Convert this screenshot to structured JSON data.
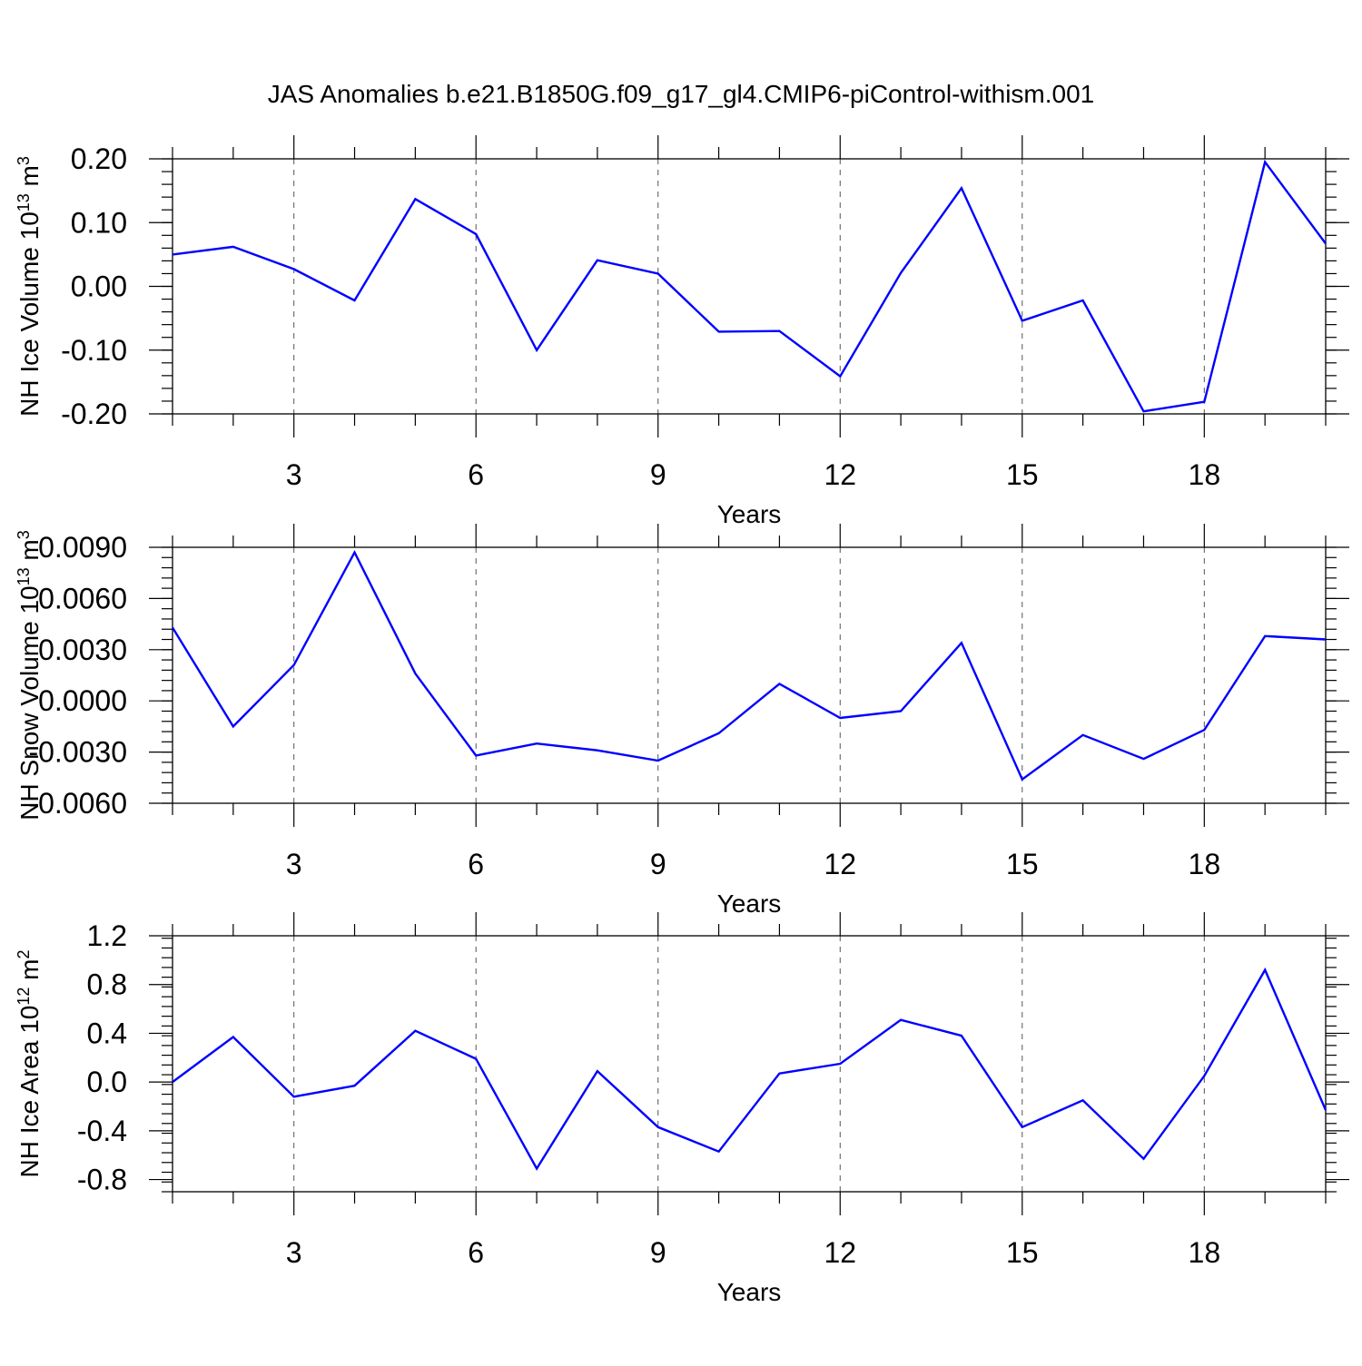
{
  "figure_title": "JAS Anomalies b.e21.B1850G.f09_g17_gl4.CMIP6-piControl-withism.001",
  "chart_data": [
    {
      "type": "line",
      "title": "JAS Anomalies b.e21.B1850G.f09_g17_gl4.CMIP6-piControl-withism.001",
      "ylabel": "NH Ice Volume 10",
      "ylabel_sup": "13",
      "ylabel_unit": "m",
      "ylabel_unit_sup": "3",
      "xlabel": "Years",
      "xlim": [
        1,
        20
      ],
      "ylim": [
        -0.2,
        0.2
      ],
      "x_ticks": [
        3,
        6,
        9,
        12,
        15,
        18
      ],
      "y_ticks": [
        "0.20",
        "0.10",
        "0.00",
        "-0.10",
        "-0.20"
      ],
      "y_tick_values": [
        0.2,
        0.1,
        0.0,
        -0.1,
        -0.2
      ],
      "series": [
        {
          "name": "NH Ice Volume",
          "color": "#0000ff",
          "x": [
            1,
            2,
            3,
            4,
            5,
            6,
            7,
            8,
            9,
            10,
            11,
            12,
            13,
            14,
            15,
            16,
            17,
            18,
            19,
            20
          ],
          "values": [
            0.05,
            0.062,
            0.027,
            -0.022,
            0.137,
            0.082,
            -0.1,
            0.041,
            0.02,
            -0.071,
            -0.07,
            -0.141,
            0.021,
            0.154,
            -0.054,
            -0.022,
            -0.196,
            -0.181,
            0.195,
            0.067
          ]
        }
      ]
    },
    {
      "type": "line",
      "ylabel": "NH Snow Volume 10",
      "ylabel_sup": "13",
      "ylabel_unit": "m",
      "ylabel_unit_sup": "3",
      "xlabel": "Years",
      "xlim": [
        1,
        20
      ],
      "ylim": [
        -0.006,
        0.009
      ],
      "x_ticks": [
        3,
        6,
        9,
        12,
        15,
        18
      ],
      "y_ticks": [
        "0.0090",
        "0.0060",
        "0.0030",
        "0.0000",
        "-0.0030",
        "-0.0060"
      ],
      "y_tick_values": [
        0.009,
        0.006,
        0.003,
        0.0,
        -0.003,
        -0.006
      ],
      "series": [
        {
          "name": "NH Snow Volume",
          "color": "#0000ff",
          "x": [
            1,
            2,
            3,
            4,
            5,
            6,
            7,
            8,
            9,
            10,
            11,
            12,
            13,
            14,
            15,
            16,
            17,
            18,
            19,
            20
          ],
          "values": [
            0.0043,
            -0.0015,
            0.0021,
            0.0087,
            0.0016,
            -0.0032,
            -0.0025,
            -0.0029,
            -0.0035,
            -0.0019,
            0.001,
            -0.001,
            -0.0006,
            0.0034,
            -0.0046,
            -0.002,
            -0.0034,
            -0.0017,
            0.0038,
            0.0036
          ]
        }
      ]
    },
    {
      "type": "line",
      "ylabel": "NH Ice Area 10",
      "ylabel_sup": "12",
      "ylabel_unit": "m",
      "ylabel_unit_sup": "2",
      "xlabel": "Years",
      "xlim": [
        1,
        20
      ],
      "ylim": [
        -0.9,
        1.2
      ],
      "x_ticks": [
        3,
        6,
        9,
        12,
        15,
        18
      ],
      "y_ticks": [
        "1.2",
        "0.8",
        "0.4",
        "0.0",
        "-0.4",
        "-0.8"
      ],
      "y_tick_values": [
        1.2,
        0.8,
        0.4,
        0.0,
        -0.4,
        -0.8
      ],
      "series": [
        {
          "name": "NH Ice Area",
          "color": "#0000ff",
          "x": [
            1,
            2,
            3,
            4,
            5,
            6,
            7,
            8,
            9,
            10,
            11,
            12,
            13,
            14,
            15,
            16,
            17,
            18,
            19,
            20
          ],
          "values": [
            0.0,
            0.37,
            -0.12,
            -0.03,
            0.42,
            0.19,
            -0.71,
            0.09,
            -0.37,
            -0.57,
            0.07,
            0.15,
            0.51,
            0.38,
            -0.37,
            -0.15,
            -0.63,
            0.05,
            0.92,
            -0.23
          ]
        }
      ]
    }
  ]
}
